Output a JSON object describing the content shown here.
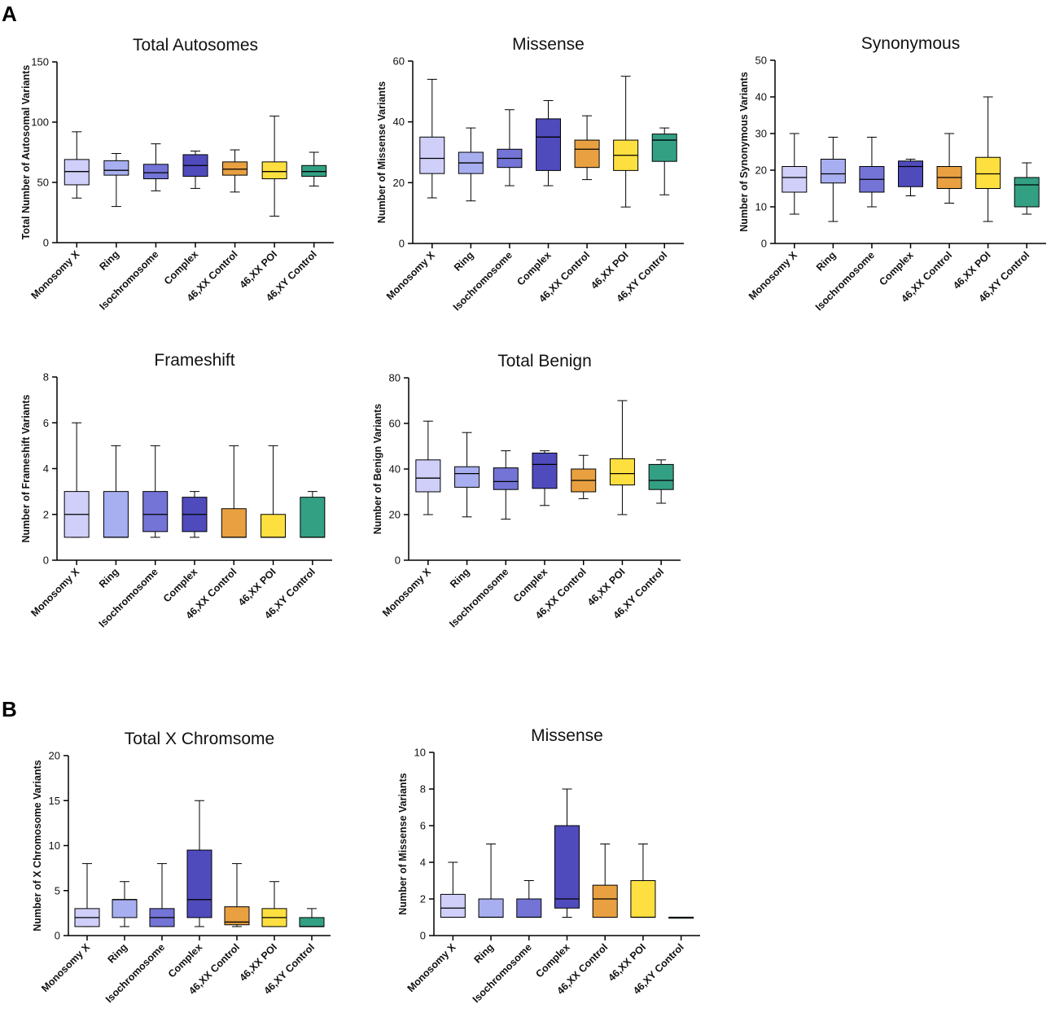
{
  "panels": [
    {
      "letter": "A"
    },
    {
      "letter": "B"
    }
  ],
  "colors": {
    "Monosomy X": "#cfcffa",
    "Ring": "#a7aff0",
    "Isochromosome": "#7374d6",
    "Complex": "#4f4bbd",
    "46,XX Control": "#e8a040",
    "46,XX POI": "#fde040",
    "46,XY Control": "#33a084"
  },
  "chart_data": [
    {
      "type": "box",
      "title": "Total Autosomes",
      "ylabel": "Total Number of Autosomal Variants",
      "ylim": [
        0,
        150
      ],
      "yticks": [
        0,
        50,
        100,
        150
      ],
      "categories": [
        "Monosomy X",
        "Ring",
        "Isochromosome",
        "Complex",
        "46,XX Control",
        "46,XX POI",
        "46,XY Control"
      ],
      "boxes": [
        {
          "min": 37,
          "q1": 48,
          "median": 59,
          "q3": 69,
          "max": 92
        },
        {
          "min": 30,
          "q1": 56,
          "median": 60,
          "q3": 68,
          "max": 74
        },
        {
          "min": 43,
          "q1": 53,
          "median": 58,
          "q3": 65,
          "max": 82
        },
        {
          "min": 45,
          "q1": 55,
          "median": 64,
          "q3": 73,
          "max": 76
        },
        {
          "min": 42,
          "q1": 56,
          "median": 61,
          "q3": 67,
          "max": 77
        },
        {
          "min": 22,
          "q1": 53,
          "median": 59,
          "q3": 67,
          "max": 105
        },
        {
          "min": 47,
          "q1": 55,
          "median": 59,
          "q3": 64,
          "max": 75
        }
      ]
    },
    {
      "type": "box",
      "title": "Missense",
      "ylabel": "Number of Missense Variants",
      "ylim": [
        0,
        60
      ],
      "yticks": [
        0,
        20,
        40,
        60
      ],
      "categories": [
        "Monosomy X",
        "Ring",
        "Isochromosome",
        "Complex",
        "46,XX Control",
        "46,XX POI",
        "46,XY Control"
      ],
      "boxes": [
        {
          "min": 15,
          "q1": 23,
          "median": 28,
          "q3": 35,
          "max": 54
        },
        {
          "min": 14,
          "q1": 23,
          "median": 26.5,
          "q3": 30,
          "max": 38
        },
        {
          "min": 19,
          "q1": 25,
          "median": 28,
          "q3": 31,
          "max": 44
        },
        {
          "min": 19,
          "q1": 24,
          "median": 35,
          "q3": 41,
          "max": 47
        },
        {
          "min": 21,
          "q1": 25,
          "median": 31,
          "q3": 34,
          "max": 42
        },
        {
          "min": 12,
          "q1": 24,
          "median": 29,
          "q3": 34,
          "max": 55
        },
        {
          "min": 16,
          "q1": 27,
          "median": 34,
          "q3": 36,
          "max": 38
        }
      ]
    },
    {
      "type": "box",
      "title": "Synonymous",
      "ylabel": "Number of Synonymous Variants",
      "ylim": [
        0,
        50
      ],
      "yticks": [
        0,
        10,
        20,
        30,
        40,
        50
      ],
      "categories": [
        "Monosomy X",
        "Ring",
        "Isochromosome",
        "Complex",
        "46,XX Control",
        "46,XX POI",
        "46,XY Control"
      ],
      "boxes": [
        {
          "min": 8,
          "q1": 14,
          "median": 18,
          "q3": 21,
          "max": 30
        },
        {
          "min": 6,
          "q1": 16.5,
          "median": 19,
          "q3": 23,
          "max": 29
        },
        {
          "min": 10,
          "q1": 14,
          "median": 17.5,
          "q3": 21,
          "max": 29
        },
        {
          "min": 13,
          "q1": 15.5,
          "median": 21,
          "q3": 22.5,
          "max": 23
        },
        {
          "min": 11,
          "q1": 15,
          "median": 18,
          "q3": 21,
          "max": 30
        },
        {
          "min": 6,
          "q1": 15,
          "median": 19,
          "q3": 23.5,
          "max": 40
        },
        {
          "min": 8,
          "q1": 10,
          "median": 16,
          "q3": 18,
          "max": 22
        }
      ]
    },
    {
      "type": "box",
      "title": "Frameshift",
      "ylabel": "Number of Frameshift Variants",
      "ylim": [
        0,
        8
      ],
      "yticks": [
        0,
        2,
        4,
        6,
        8
      ],
      "categories": [
        "Monosomy X",
        "Ring",
        "Isochromosome",
        "Complex",
        "46,XX Control",
        "46,XX POI",
        "46,XY Control"
      ],
      "boxes": [
        {
          "min": 1,
          "q1": 1,
          "median": 2,
          "q3": 3,
          "max": 6
        },
        {
          "min": 1,
          "q1": 1,
          "median": 1,
          "q3": 3,
          "max": 5
        },
        {
          "min": 1,
          "q1": 1.25,
          "median": 2,
          "q3": 3,
          "max": 5
        },
        {
          "min": 1,
          "q1": 1.25,
          "median": 2,
          "q3": 2.75,
          "max": 3
        },
        {
          "min": 1,
          "q1": 1,
          "median": 1,
          "q3": 2.25,
          "max": 5
        },
        {
          "min": 1,
          "q1": 1,
          "median": 1,
          "q3": 2,
          "max": 5
        },
        {
          "min": 1,
          "q1": 1,
          "median": 1,
          "q3": 2.75,
          "max": 3
        }
      ]
    },
    {
      "type": "box",
      "title": "Total Benign",
      "ylabel": "Number of Benign Variants",
      "ylim": [
        0,
        80
      ],
      "yticks": [
        0,
        20,
        40,
        60,
        80
      ],
      "categories": [
        "Monosomy X",
        "Ring",
        "Isochromosome",
        "Complex",
        "46,XX Control",
        "46,XX POI",
        "46,XY Control"
      ],
      "boxes": [
        {
          "min": 20,
          "q1": 30,
          "median": 36,
          "q3": 44,
          "max": 61
        },
        {
          "min": 19,
          "q1": 32,
          "median": 38,
          "q3": 41,
          "max": 56
        },
        {
          "min": 18,
          "q1": 31,
          "median": 34.5,
          "q3": 40.5,
          "max": 48
        },
        {
          "min": 24,
          "q1": 31.5,
          "median": 42,
          "q3": 47,
          "max": 48
        },
        {
          "min": 27,
          "q1": 30,
          "median": 35,
          "q3": 40,
          "max": 46
        },
        {
          "min": 20,
          "q1": 33,
          "median": 38,
          "q3": 44.5,
          "max": 70
        },
        {
          "min": 25,
          "q1": 31,
          "median": 35,
          "q3": 42,
          "max": 44
        }
      ]
    },
    {
      "type": "box",
      "title": "Total X Chromsome",
      "ylabel": "Number of X Chromosome Variants",
      "ylim": [
        0,
        20
      ],
      "yticks": [
        0,
        5,
        10,
        15,
        20
      ],
      "categories": [
        "Monosomy X",
        "Ring",
        "Isochromosome",
        "Complex",
        "46,XX Control",
        "46,XX POI",
        "46,XY Control"
      ],
      "boxes": [
        {
          "min": 1,
          "q1": 1,
          "median": 2,
          "q3": 3,
          "max": 8
        },
        {
          "min": 1,
          "q1": 2,
          "median": 4,
          "q3": 4,
          "max": 6
        },
        {
          "min": 1,
          "q1": 1,
          "median": 2,
          "q3": 3,
          "max": 8
        },
        {
          "min": 1,
          "q1": 2,
          "median": 4,
          "q3": 9.5,
          "max": 15
        },
        {
          "min": 1,
          "q1": 1.2,
          "median": 1.5,
          "q3": 3.2,
          "max": 8
        },
        {
          "min": 1,
          "q1": 1,
          "median": 2,
          "q3": 3,
          "max": 6
        },
        {
          "min": 1,
          "q1": 1,
          "median": 1,
          "q3": 2,
          "max": 3
        }
      ]
    },
    {
      "type": "box",
      "title": "Missense",
      "ylabel": "Number of Missense Variants",
      "ylim": [
        0,
        10
      ],
      "yticks": [
        0,
        2,
        4,
        6,
        8,
        10
      ],
      "categories": [
        "Monosomy X",
        "Ring",
        "Isochromosome",
        "Complex",
        "46,XX Control",
        "46,XX POI",
        "46,XY Control"
      ],
      "boxes": [
        {
          "min": 1,
          "q1": 1,
          "median": 1.5,
          "q3": 2.25,
          "max": 4
        },
        {
          "min": 1,
          "q1": 1,
          "median": 1,
          "q3": 2,
          "max": 5
        },
        {
          "min": 1,
          "q1": 1,
          "median": 1,
          "q3": 2,
          "max": 3
        },
        {
          "min": 1,
          "q1": 1.5,
          "median": 2,
          "q3": 6,
          "max": 8
        },
        {
          "min": 1,
          "q1": 1,
          "median": 2,
          "q3": 2.75,
          "max": 5
        },
        {
          "min": 1,
          "q1": 1,
          "median": 1,
          "q3": 3,
          "max": 5
        },
        {
          "min": 1,
          "q1": 1,
          "median": 1,
          "q3": 1,
          "max": 1
        }
      ]
    }
  ]
}
